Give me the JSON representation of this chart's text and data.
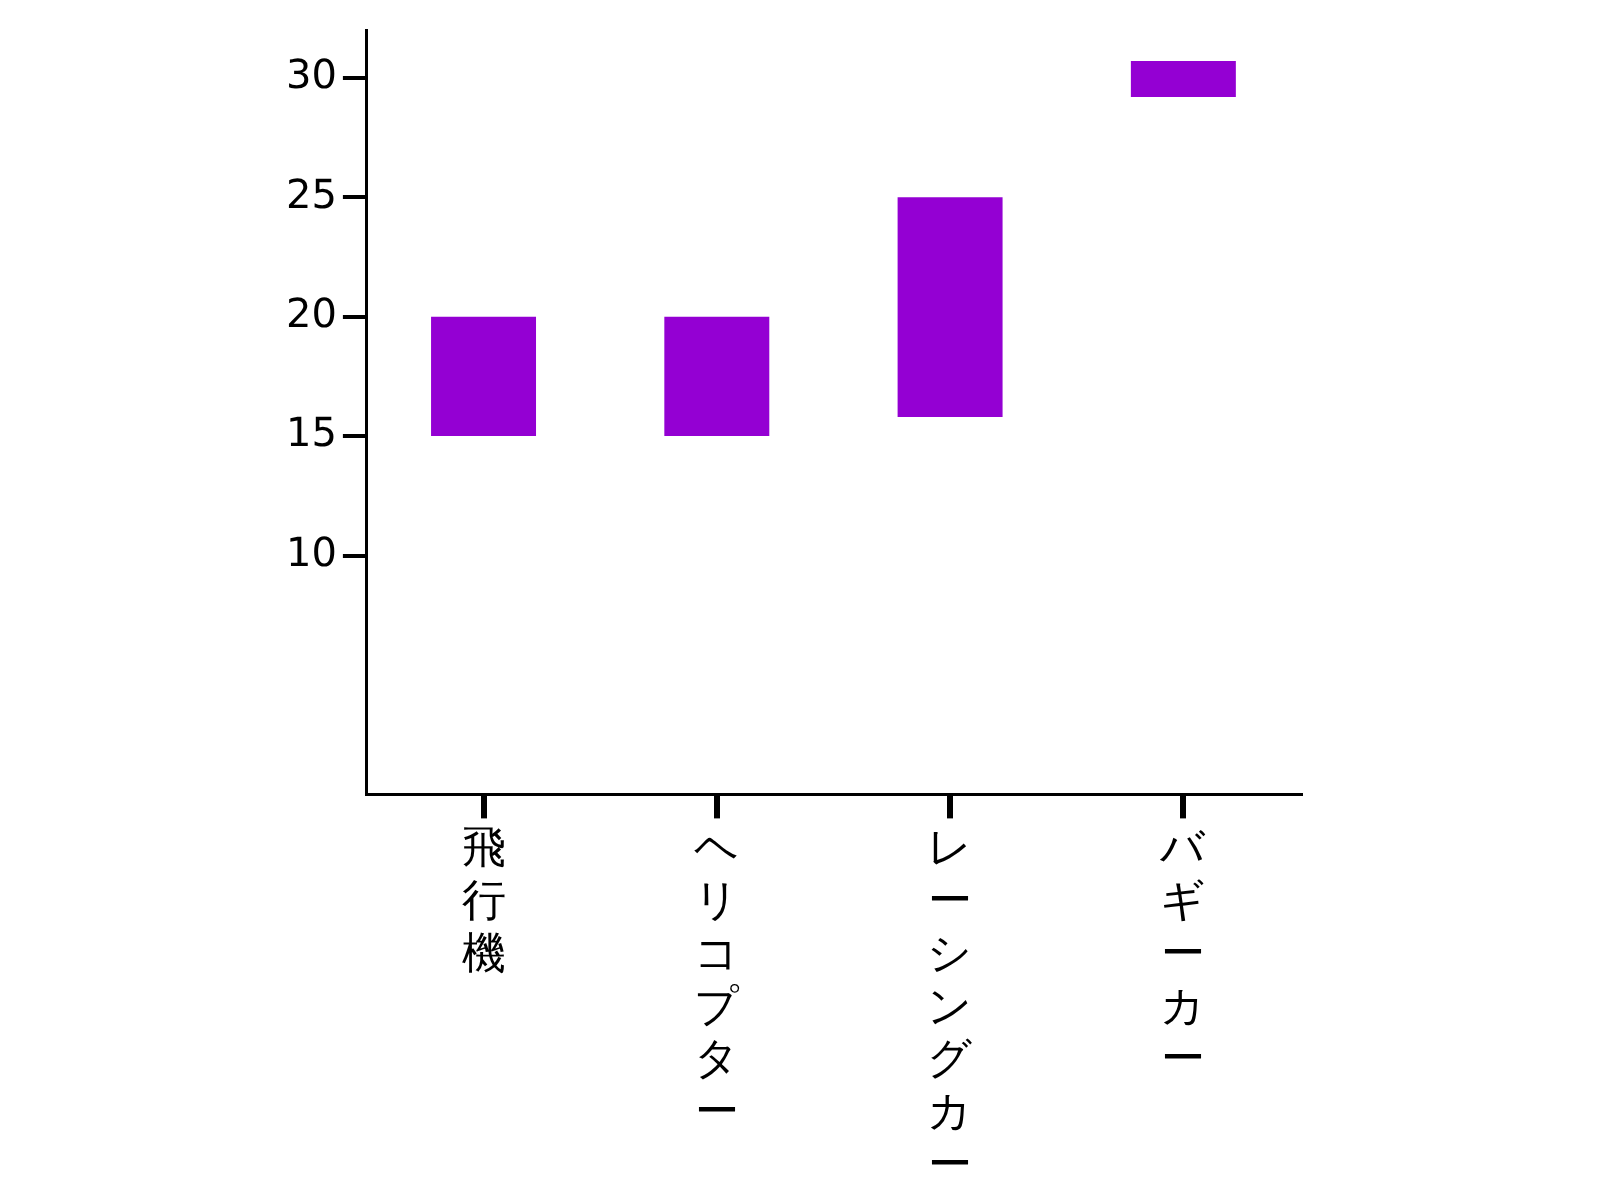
{
  "chart_data": {
    "type": "bar",
    "categories": [
      "飛行機",
      "ヘリコプター",
      "レーシングカー",
      "バギーカー"
    ],
    "base": [
      15,
      15,
      15.8,
      29.2
    ],
    "values": [
      5,
      5,
      9.2,
      1.5
    ],
    "color": "#9400d3",
    "ylim": [
      0,
      32
    ],
    "yticks": [
      10,
      15,
      20,
      25,
      30
    ],
    "grid": false,
    "legend": false
  }
}
